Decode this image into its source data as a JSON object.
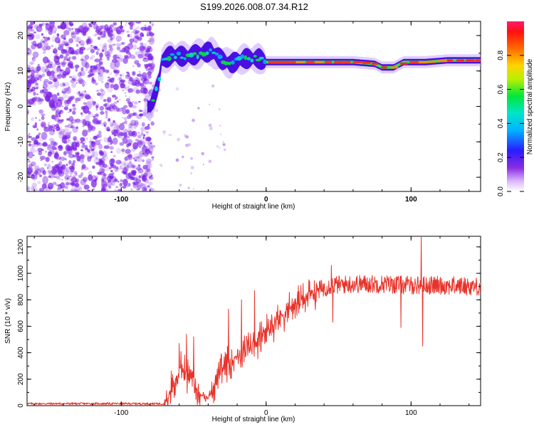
{
  "title": "S199.2026.008.07.34.R12",
  "colors": {
    "snr_line": "#e8332a",
    "scatter": "#7b1fe6",
    "trace_dark": "#4a0fe0"
  },
  "chart_data": [
    {
      "type": "heatmap",
      "title": "S199.2026.008.07.34.R12",
      "xlabel": "Height of straight line (km)",
      "ylabel": "Frequency (Hz)",
      "xlim": [
        -165,
        148
      ],
      "ylim": [
        -24,
        24
      ],
      "xticks": [
        -100,
        0,
        100
      ],
      "yticks": [
        20,
        10,
        0,
        -10,
        -20
      ],
      "colorbar": {
        "label": "Normalized spectral amplitude",
        "range": [
          0,
          1
        ],
        "ticks": [
          0.0,
          0.2,
          0.4,
          0.6,
          0.8
        ]
      },
      "trace": [
        {
          "x": -80,
          "y": 0
        },
        {
          "x": -77,
          "y": 3
        },
        {
          "x": -74,
          "y": 7
        },
        {
          "x": -72,
          "y": 13
        },
        {
          "x": -65,
          "y": 14.5
        },
        {
          "x": -55,
          "y": 14
        },
        {
          "x": -45,
          "y": 15
        },
        {
          "x": -38,
          "y": 15.5
        },
        {
          "x": -30,
          "y": 13
        },
        {
          "x": -25,
          "y": 12
        },
        {
          "x": -15,
          "y": 13.5
        },
        {
          "x": -5,
          "y": 13.5
        },
        {
          "x": 0,
          "y": 12.5
        },
        {
          "x": 30,
          "y": 12.5
        },
        {
          "x": 60,
          "y": 12.5
        },
        {
          "x": 75,
          "y": 12
        },
        {
          "x": 80,
          "y": 11
        },
        {
          "x": 88,
          "y": 11
        },
        {
          "x": 95,
          "y": 12.5
        },
        {
          "x": 110,
          "y": 12.5
        },
        {
          "x": 125,
          "y": 13
        },
        {
          "x": 148,
          "y": 13
        }
      ]
    },
    {
      "type": "line",
      "xlabel": "Height of straight line (km)",
      "ylabel": "SNR (10 * v/v)",
      "xlim": [
        -165,
        148
      ],
      "ylim": [
        0,
        1280
      ],
      "xticks": [
        -100,
        0,
        100
      ],
      "yticks": [
        0,
        200,
        400,
        600,
        800,
        1000,
        1200
      ],
      "envelope": [
        {
          "x": -165,
          "y": 15
        },
        {
          "x": -70,
          "y": 15
        },
        {
          "x": -65,
          "y": 150
        },
        {
          "x": -58,
          "y": 280
        },
        {
          "x": -52,
          "y": 230
        },
        {
          "x": -46,
          "y": 80
        },
        {
          "x": -40,
          "y": 60
        },
        {
          "x": -34,
          "y": 200
        },
        {
          "x": -28,
          "y": 300
        },
        {
          "x": -20,
          "y": 380
        },
        {
          "x": -12,
          "y": 430
        },
        {
          "x": -5,
          "y": 500
        },
        {
          "x": 5,
          "y": 620
        },
        {
          "x": 15,
          "y": 730
        },
        {
          "x": 25,
          "y": 800
        },
        {
          "x": 35,
          "y": 870
        },
        {
          "x": 45,
          "y": 910
        },
        {
          "x": 60,
          "y": 920
        },
        {
          "x": 80,
          "y": 920
        },
        {
          "x": 100,
          "y": 910
        },
        {
          "x": 120,
          "y": 910
        },
        {
          "x": 148,
          "y": 900
        }
      ],
      "spikes": [
        {
          "x": -60,
          "y": 470
        },
        {
          "x": -55,
          "y": 540
        },
        {
          "x": -50,
          "y": 520
        },
        {
          "x": -26,
          "y": 730
        },
        {
          "x": -17,
          "y": 800
        },
        {
          "x": -8,
          "y": 870
        },
        {
          "x": 45,
          "y": 1060
        },
        {
          "x": 46,
          "y": 630
        },
        {
          "x": 93,
          "y": 590
        },
        {
          "x": 107,
          "y": 1280
        },
        {
          "x": 108,
          "y": 450
        }
      ]
    }
  ]
}
